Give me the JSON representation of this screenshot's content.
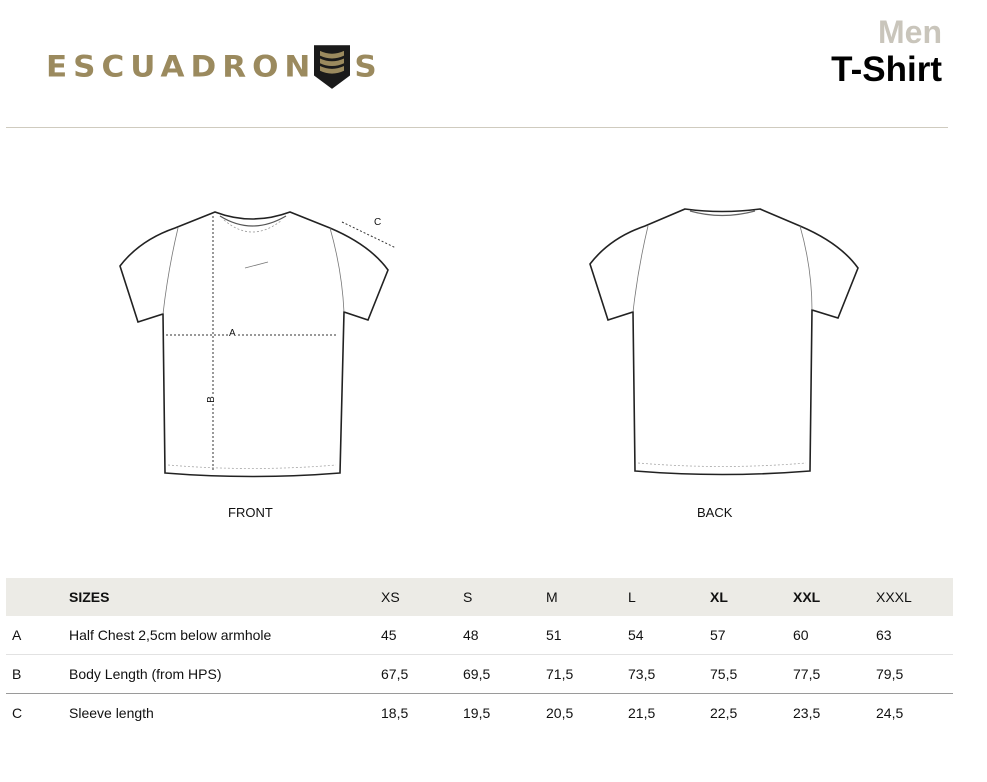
{
  "brand": {
    "logo_text": "ESCUADRONES",
    "logo_color": "#9b8a5e"
  },
  "header": {
    "category": "Men",
    "product": "T-Shirt"
  },
  "figures": {
    "front_label": "FRONT",
    "back_label": "BACK",
    "measure_a": "A",
    "measure_b": "B",
    "measure_c": "C"
  },
  "table": {
    "header_label": "SIZES",
    "sizes": [
      "XS",
      "S",
      "M",
      "L",
      "XL",
      "XXL",
      "XXXL"
    ],
    "rows": [
      {
        "key": "A",
        "label": "Half Chest 2,5cm below armhole",
        "values": [
          "45",
          "48",
          "51",
          "54",
          "57",
          "60",
          "63"
        ]
      },
      {
        "key": "B",
        "label": "Body Length (from HPS)",
        "values": [
          "67,5",
          "69,5",
          "71,5",
          "73,5",
          "75,5",
          "77,5",
          "79,5"
        ]
      },
      {
        "key": "C",
        "label": "Sleeve length",
        "values": [
          "18,5",
          "19,5",
          "20,5",
          "21,5",
          "22,5",
          "23,5",
          "24,5"
        ]
      }
    ]
  }
}
